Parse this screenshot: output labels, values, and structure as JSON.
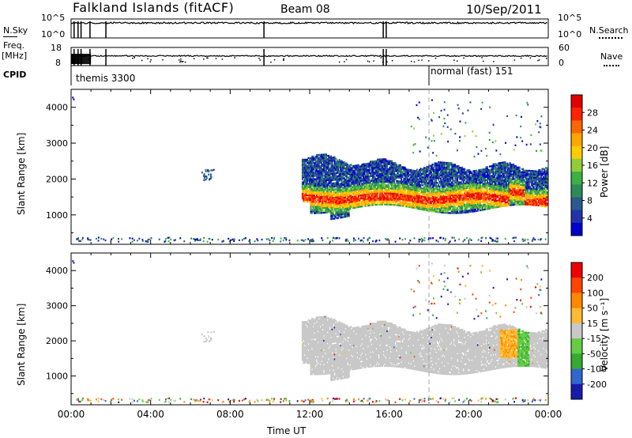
{
  "header": {
    "title": "Falkland Islands (fitACF)",
    "beam": "Beam 08",
    "date": "10/Sep/2011"
  },
  "aux_panels": {
    "nsky": {
      "left_label": "N.Sky",
      "left_ticks": [
        "10^5",
        "10^0"
      ],
      "right_ticks": [
        "10^5",
        "10^0"
      ],
      "right_label": "N.Search"
    },
    "freq": {
      "left_label_1": "Freq.",
      "left_label_2": "[MHz]",
      "left_ticks": [
        "18",
        "8"
      ],
      "right_ticks": [
        "60",
        "0"
      ],
      "right_label": "Nave"
    },
    "cpid": {
      "label": "CPID",
      "segments": [
        {
          "name": "themis 3300",
          "start": "00:00"
        },
        {
          "name": "normal (fast) 151",
          "start": "18:00"
        }
      ]
    }
  },
  "chart_data": [
    {
      "type": "heatmap",
      "panel": "power",
      "ylabel": "Slant Range [km]",
      "yticks": [
        1000,
        2000,
        3000,
        4000
      ],
      "ylim": [
        180,
        4500
      ],
      "xticks": [
        "00:00",
        "04:00",
        "08:00",
        "12:00",
        "16:00",
        "20:00",
        "00:00"
      ],
      "xlim_hours": [
        0,
        24
      ],
      "colorbar": {
        "label": "Power [dB]",
        "ticks": [
          "28",
          "24",
          "20",
          "16",
          "12",
          "8",
          "4"
        ],
        "colors": [
          "#0000cc",
          "#2233aa",
          "#2a5a8c",
          "#2e8b57",
          "#3cb043",
          "#8fce3a",
          "#ffcc00",
          "#ffa500",
          "#ff6600",
          "#ff2200",
          "#e00000"
        ]
      },
      "main_band": {
        "start_hour": 11.6,
        "end_hour": 23.9,
        "center_km": 1450,
        "halfwidth_km": 350
      },
      "upper_layer": {
        "start_hour": 11.7,
        "end_hour": 23.9,
        "top_km": 2600
      }
    },
    {
      "type": "heatmap",
      "panel": "velocity",
      "ylabel": "Slant Range [km]",
      "yticks": [
        1000,
        2000,
        3000,
        4000
      ],
      "ylim": [
        180,
        4500
      ],
      "xticks": [
        "00:00",
        "04:00",
        "08:00",
        "12:00",
        "16:00",
        "20:00",
        "00:00"
      ],
      "xlabel": "Time UT",
      "colorbar": {
        "label": "Velocity [m s⁻¹]",
        "ticks": [
          "200",
          "100",
          "50",
          "15",
          "-15",
          "-50",
          "-100",
          "-200"
        ],
        "colors": [
          "#1a1aaa",
          "#3366cc",
          "#33aa33",
          "#66cc44",
          "#c8c8c8",
          "#ffbb33",
          "#ff8800",
          "#ff4400",
          "#ee0000"
        ]
      },
      "ground_scatter_color": "#c8c8c8"
    }
  ]
}
